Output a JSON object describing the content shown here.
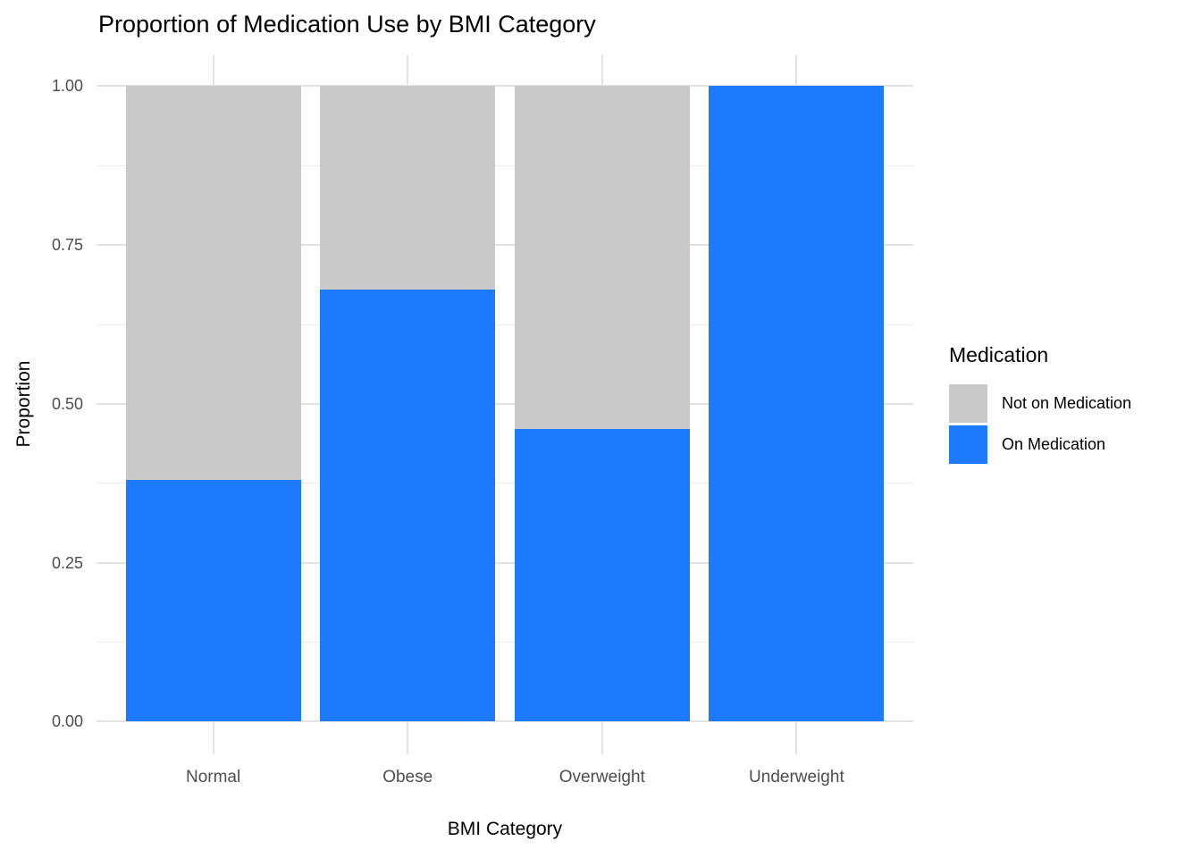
{
  "chart_data": {
    "type": "bar",
    "subtype": "stacked-proportion",
    "orientation": "vertical",
    "title": "Proportion of Medication Use by BMI Category",
    "xlabel": "BMI Category",
    "ylabel": "Proportion",
    "categories": [
      "Normal",
      "Obese",
      "Overweight",
      "Underweight"
    ],
    "series": [
      {
        "name": "On Medication",
        "color": "#1e7afc",
        "values": [
          0.38,
          0.68,
          0.46,
          1.0
        ]
      },
      {
        "name": "Not on Medication",
        "color": "#c9c9c9",
        "values": [
          0.62,
          0.32,
          0.54,
          0.0
        ]
      }
    ],
    "stack_order_bottom_to_top": [
      "On Medication",
      "Not on Medication"
    ],
    "ylim": [
      0,
      1
    ],
    "yticks": [
      0,
      0.25,
      0.5,
      0.75,
      1
    ],
    "ytick_labels": [
      "0.00",
      "0.25",
      "0.50",
      "0.75",
      "1.00"
    ],
    "minor_gridlines": [
      0.125,
      0.375,
      0.625,
      0.875
    ],
    "grid": true,
    "background": "#ffffff",
    "major_grid_color": "#e3e3e3",
    "minor_grid_color": "#ebebeb",
    "tick_label_color": "#4d4d4d",
    "legend": {
      "title": "Medication",
      "position": "right",
      "items": [
        {
          "label": "Not on Medication",
          "color": "#c9c9c9"
        },
        {
          "label": "On Medication",
          "color": "#1e7afc"
        }
      ]
    }
  }
}
